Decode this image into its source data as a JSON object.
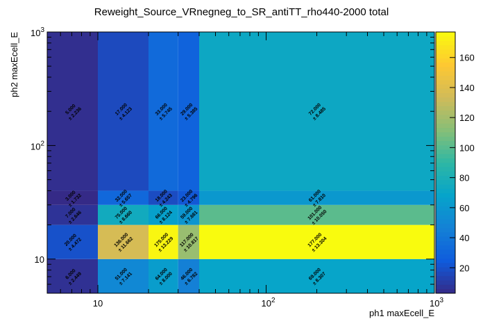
{
  "chart_data": {
    "type": "heatmap",
    "title": "Reweight_Source_VRnegneg_to_SR_antiTT_rho440-2000 total",
    "xlabel": "ph1 maxEcell_E",
    "ylabel": "ph2 maxEcell_E",
    "x_scale": "log",
    "y_scale": "log",
    "x_range": [
      5,
      1000
    ],
    "y_range": [
      5,
      1000
    ],
    "x_edges": [
      5,
      10,
      20,
      30,
      40,
      1000
    ],
    "y_edges": [
      5,
      10,
      20,
      30,
      40,
      1000
    ],
    "x_ticks": [
      {
        "value": 10,
        "base": "10",
        "exp": ""
      },
      {
        "value": 100,
        "base": "10",
        "exp": "2"
      },
      {
        "value": 1000,
        "base": "10",
        "exp": "3"
      }
    ],
    "y_ticks": [
      {
        "value": 10,
        "base": "10",
        "exp": ""
      },
      {
        "value": 100,
        "base": "10",
        "exp": "2"
      },
      {
        "value": 1000,
        "base": "10",
        "exp": "3"
      }
    ],
    "cells": [
      {
        "xi": 0,
        "yi": 0,
        "value": "6.000",
        "error": "± 2.449"
      },
      {
        "xi": 1,
        "yi": 0,
        "value": "51.000",
        "error": "± 7.141"
      },
      {
        "xi": 2,
        "yi": 0,
        "value": "64.000",
        "error": "± 8.000"
      },
      {
        "xi": 3,
        "yi": 0,
        "value": "46.000",
        "error": "± 6.782"
      },
      {
        "xi": 4,
        "yi": 0,
        "value": "69.000",
        "error": "± 8.307"
      },
      {
        "xi": 0,
        "yi": 1,
        "value": "20.000",
        "error": "± 4.472"
      },
      {
        "xi": 1,
        "yi": 1,
        "value": "136.000",
        "error": "± 11.662"
      },
      {
        "xi": 2,
        "yi": 1,
        "value": "175.000",
        "error": "± 13.229"
      },
      {
        "xi": 3,
        "yi": 1,
        "value": "117.000",
        "error": "± 10.817"
      },
      {
        "xi": 4,
        "yi": 1,
        "value": "177.000",
        "error": "± 13.304"
      },
      {
        "xi": 0,
        "yi": 2,
        "value": "7.000",
        "error": "± 2.646"
      },
      {
        "xi": 1,
        "yi": 2,
        "value": "75.000",
        "error": "± 8.660"
      },
      {
        "xi": 2,
        "yi": 2,
        "value": "66.000",
        "error": "± 8.124"
      },
      {
        "xi": 3,
        "yi": 2,
        "value": "59.000",
        "error": "± 7.681"
      },
      {
        "xi": 4,
        "yi": 2,
        "value": "101.000",
        "error": "± 10.050"
      },
      {
        "xi": 0,
        "yi": 3,
        "value": "3.000",
        "error": "± 1.732"
      },
      {
        "xi": 1,
        "yi": 3,
        "value": "32.000",
        "error": "± 5.657"
      },
      {
        "xi": 2,
        "yi": 3,
        "value": "18.000",
        "error": "± 4.243"
      },
      {
        "xi": 3,
        "yi": 3,
        "value": "23.000",
        "error": "± 4.796"
      },
      {
        "xi": 4,
        "yi": 3,
        "value": "61.000",
        "error": "± 7.810"
      },
      {
        "xi": 0,
        "yi": 4,
        "value": "5.000",
        "error": "± 2.236"
      },
      {
        "xi": 1,
        "yi": 4,
        "value": "17.000",
        "error": "± 4.123"
      },
      {
        "xi": 2,
        "yi": 4,
        "value": "33.000",
        "error": "± 5.745"
      },
      {
        "xi": 3,
        "yi": 4,
        "value": "29.000",
        "error": "± 5.385"
      },
      {
        "xi": 4,
        "yi": 4,
        "value": "72.000",
        "error": "± 8.485"
      }
    ],
    "colorbar": {
      "range": [
        3,
        177
      ],
      "ticks": [
        20,
        40,
        60,
        80,
        100,
        120,
        140,
        160
      ],
      "palette": [
        "#352a87",
        "#0f5cdd",
        "#1481d6",
        "#06a4ca",
        "#2eb7a4",
        "#87bf77",
        "#d1bb59",
        "#fec832",
        "#f9fb0e"
      ]
    },
    "grid": false,
    "legend": "none"
  }
}
